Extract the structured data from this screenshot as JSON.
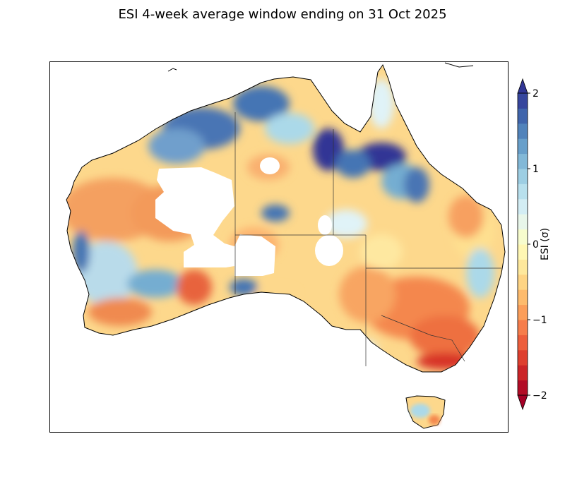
{
  "figure": {
    "title": "ESI 4-week average window ending on 31 Oct 2025"
  },
  "colorbar": {
    "label": "ESI (σ)",
    "range": [
      -2,
      2
    ],
    "ticks": [
      {
        "value": 2,
        "label": "2"
      },
      {
        "value": 1,
        "label": "1"
      },
      {
        "value": 0,
        "label": "0"
      },
      {
        "value": -1,
        "label": "−1"
      },
      {
        "value": -2,
        "label": "−2"
      }
    ],
    "levels": 20,
    "extend": "both",
    "colormap": "RdYlBu"
  },
  "map": {
    "region": "Australia",
    "background": "#ffffff",
    "ocean_color": "#ffffff",
    "border_color": "#000000"
  }
}
